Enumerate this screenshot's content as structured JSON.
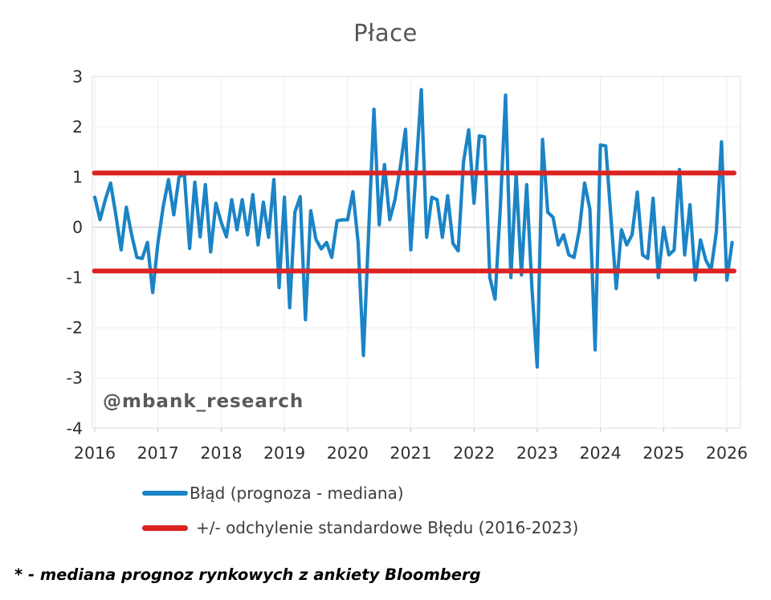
{
  "chart": {
    "title": "Płace",
    "watermark": "@mbank_research"
  },
  "legend": {
    "items": [
      {
        "label": "Błąd (prognoza - mediana)",
        "color": "#1b84c6"
      },
      {
        "label": "+/- odchylenie standardowe Błędu (2016-2023)",
        "color": "#dd2222"
      }
    ]
  },
  "footnote": "* - mediana prognoz rynkowych z ankiety Bloomberg",
  "chart_data": {
    "type": "line",
    "title": "Płace",
    "xlabel": "",
    "ylabel": "",
    "ylim": [
      -4,
      3
    ],
    "y_ticks": [
      3,
      2,
      1,
      0,
      -1,
      -2,
      -3,
      -4
    ],
    "x_tick_labels": [
      "2016",
      "2017",
      "2018",
      "2019",
      "2020",
      "2021",
      "2022",
      "2023",
      "2024",
      "2025",
      "2026"
    ],
    "x_start_year": 2016,
    "x_frequency": "monthly",
    "grid": true,
    "legend_position": "bottom",
    "series": [
      {
        "name": "Błąd (prognoza - mediana)",
        "color": "#1b84c6",
        "values": [
          0.6,
          0.15,
          0.55,
          0.88,
          0.25,
          -0.45,
          0.4,
          -0.15,
          -0.6,
          -0.62,
          -0.3,
          -1.3,
          -0.3,
          0.42,
          0.95,
          0.25,
          1.0,
          1.06,
          -0.42,
          0.9,
          -0.19,
          0.85,
          -0.49,
          0.48,
          0.1,
          -0.19,
          0.55,
          -0.05,
          0.55,
          -0.15,
          0.65,
          -0.35,
          0.5,
          -0.2,
          0.95,
          -1.2,
          0.6,
          -1.6,
          0.3,
          0.61,
          -1.84,
          0.33,
          -0.24,
          -0.43,
          -0.3,
          -0.6,
          0.13,
          0.15,
          0.15,
          0.71,
          -0.3,
          -2.55,
          -0.1,
          2.35,
          0.05,
          1.25,
          0.15,
          0.55,
          1.2,
          1.95,
          -0.45,
          1.15,
          2.74,
          -0.2,
          0.6,
          0.55,
          -0.2,
          0.63,
          -0.32,
          -0.47,
          1.3,
          1.94,
          0.48,
          1.82,
          1.8,
          -1.0,
          -1.43,
          0.4,
          2.63,
          -1.0,
          1.05,
          -0.95,
          0.85,
          -1.2,
          -2.78,
          1.75,
          0.3,
          0.2,
          -0.35,
          -0.15,
          -0.55,
          -0.6,
          -0.05,
          0.88,
          0.36,
          -2.44,
          1.64,
          1.62,
          0.2,
          -1.22,
          -0.05,
          -0.35,
          -0.15,
          0.7,
          -0.55,
          -0.62,
          0.58,
          -1.0,
          0.0,
          -0.55,
          -0.45,
          1.15,
          -0.55,
          0.45,
          -1.05,
          -0.25,
          -0.65,
          -0.85,
          -0.1,
          1.7,
          -1.05,
          -0.3
        ]
      },
      {
        "name": "+/- odchylenie standardowe Błędu (2016-2023)",
        "color": "#dd2222",
        "type": "hline",
        "values": [
          1.08,
          -0.87
        ]
      }
    ]
  }
}
